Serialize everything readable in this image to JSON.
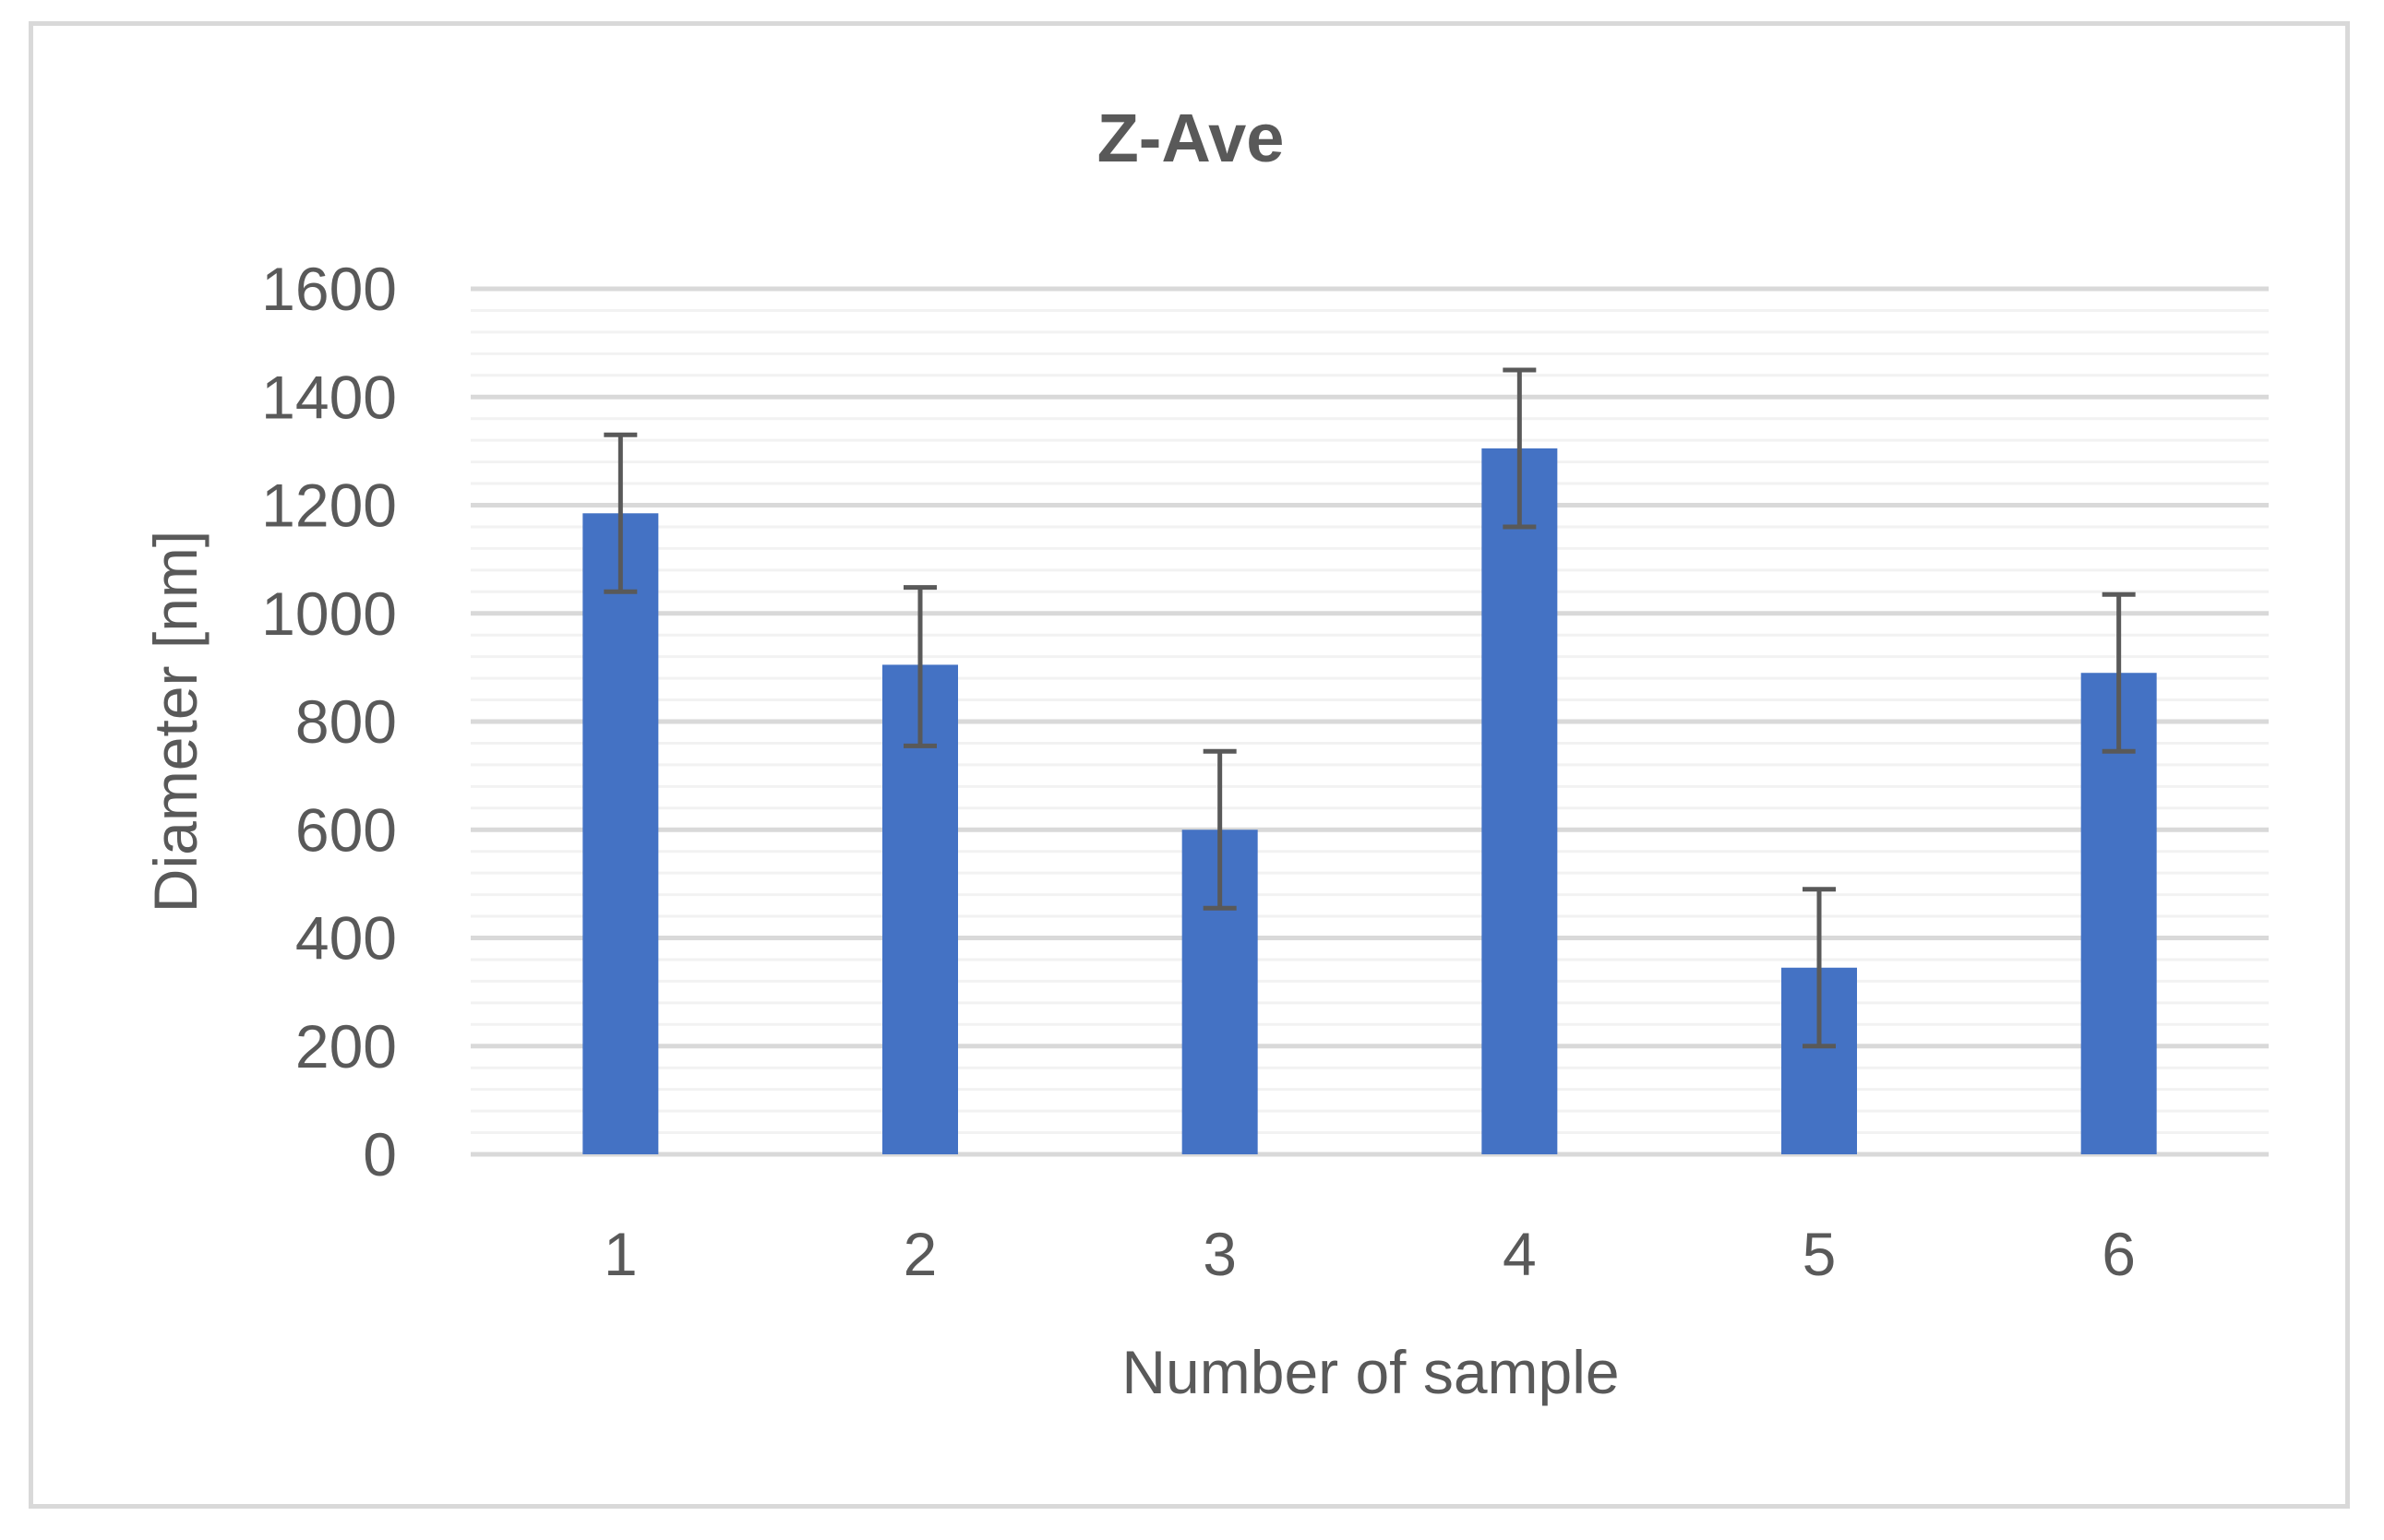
{
  "chart_data": {
    "type": "bar",
    "title": "Z-Ave",
    "xlabel": "Number of sample",
    "ylabel": "Diameter [nm]",
    "categories": [
      "1",
      "2",
      "3",
      "4",
      "5",
      "6"
    ],
    "values": [
      1185,
      905,
      600,
      1305,
      345,
      890
    ],
    "error_low": [
      1040,
      755,
      455,
      1160,
      200,
      745
    ],
    "error_high": [
      1330,
      1048,
      745,
      1450,
      490,
      1035
    ],
    "ylim": [
      0,
      1600
    ],
    "yticks": [
      "0",
      "200",
      "400",
      "600",
      "800",
      "1000",
      "1200",
      "1400",
      "1600"
    ],
    "grid": true,
    "colors": {
      "bar": "#4472c4",
      "error_bar": "#595959",
      "major_grid": "#d9d9d9",
      "minor_grid": "#f2f2f2",
      "axis_line": "#d9d9d9"
    }
  }
}
